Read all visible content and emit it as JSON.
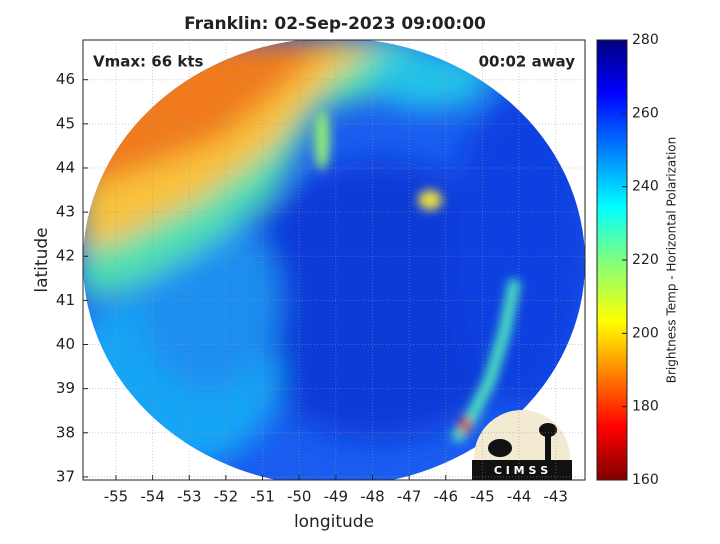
{
  "map": {
    "title": "Franklin: 02-Sep-2023 09:00:00",
    "annotations": {
      "left": "Vmax: 66 kts",
      "right": "00:02 away"
    },
    "xlabel": "longitude",
    "ylabel": "latitude",
    "xlim": [
      -55.9,
      -42.2
    ],
    "xticks": [
      -55,
      -54,
      -53,
      -52,
      -51,
      -50,
      -49,
      -48,
      -47,
      -46,
      -45,
      -44,
      -43
    ],
    "ylim": [
      36.93,
      46.9
    ],
    "yticks": [
      37,
      38,
      39,
      40,
      41,
      42,
      43,
      44,
      45,
      46
    ],
    "grid": true,
    "colorbar": {
      "label": "Brightness Temp - Horizontal Polarization",
      "lim": [
        160,
        280
      ],
      "ticks": [
        160,
        180,
        200,
        220,
        240,
        260,
        280
      ]
    },
    "logo": "C I M S S"
  }
}
